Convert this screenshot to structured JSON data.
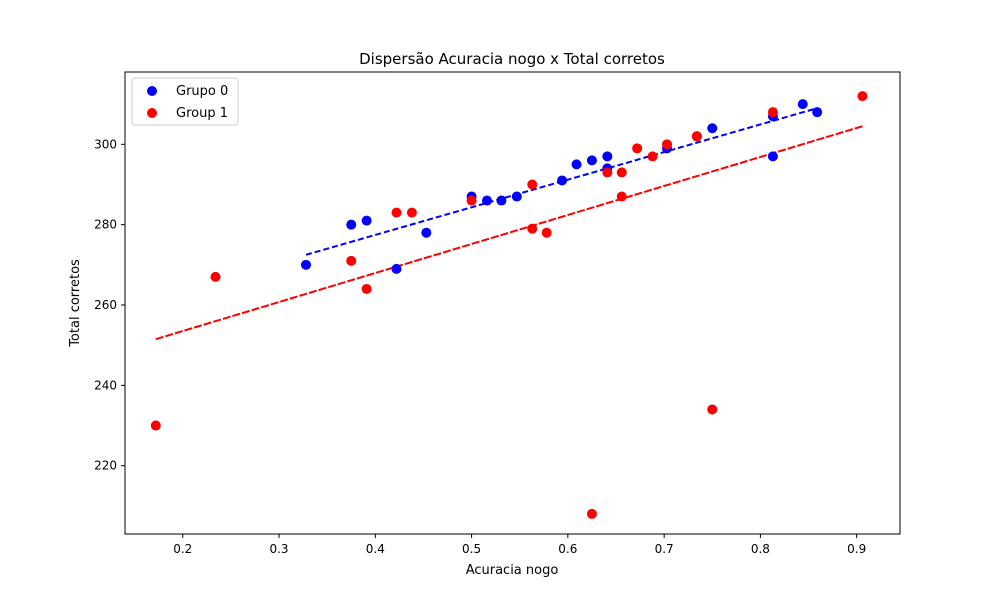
{
  "chart_data": {
    "type": "scatter",
    "title": "Dispersão Acuracia nogo x Total corretos",
    "xlabel": "Acuracia nogo",
    "ylabel": "Total corretos",
    "xlim": [
      0.14,
      0.945
    ],
    "ylim": [
      203,
      318
    ],
    "xticks": [
      0.2,
      0.3,
      0.4,
      0.5,
      0.6,
      0.7,
      0.8,
      0.9
    ],
    "xtick_labels": [
      "0.2",
      "0.3",
      "0.4",
      "0.5",
      "0.6",
      "0.7",
      "0.8",
      "0.9"
    ],
    "yticks": [
      220,
      240,
      260,
      280,
      300
    ],
    "ytick_labels": [
      "220",
      "240",
      "260",
      "280",
      "300"
    ],
    "grid": false,
    "legend_position": "top-left",
    "series": [
      {
        "name": "Grupo 0",
        "color": "#0000ff",
        "points": [
          [
            0.328,
            270
          ],
          [
            0.375,
            280
          ],
          [
            0.391,
            281
          ],
          [
            0.422,
            269
          ],
          [
            0.453,
            278
          ],
          [
            0.5,
            287
          ],
          [
            0.516,
            286
          ],
          [
            0.531,
            286
          ],
          [
            0.547,
            287
          ],
          [
            0.594,
            291
          ],
          [
            0.609,
            295
          ],
          [
            0.625,
            296
          ],
          [
            0.641,
            297
          ],
          [
            0.641,
            294
          ],
          [
            0.703,
            299
          ],
          [
            0.734,
            302
          ],
          [
            0.75,
            304
          ],
          [
            0.813,
            307
          ],
          [
            0.813,
            297
          ],
          [
            0.844,
            310
          ],
          [
            0.859,
            308
          ]
        ],
        "trend": {
          "x0": 0.328,
          "y0": 272.5,
          "x1": 0.859,
          "y1": 309
        }
      },
      {
        "name": "Group 1",
        "color": "#ff0000",
        "points": [
          [
            0.172,
            230
          ],
          [
            0.234,
            267
          ],
          [
            0.375,
            271
          ],
          [
            0.391,
            264
          ],
          [
            0.422,
            283
          ],
          [
            0.438,
            283
          ],
          [
            0.5,
            286
          ],
          [
            0.563,
            290
          ],
          [
            0.563,
            279
          ],
          [
            0.578,
            278
          ],
          [
            0.625,
            208
          ],
          [
            0.641,
            293
          ],
          [
            0.656,
            293
          ],
          [
            0.656,
            287
          ],
          [
            0.672,
            299
          ],
          [
            0.688,
            297
          ],
          [
            0.703,
            300
          ],
          [
            0.734,
            302
          ],
          [
            0.75,
            234
          ],
          [
            0.813,
            308
          ],
          [
            0.906,
            312
          ]
        ],
        "trend": {
          "x0": 0.172,
          "y0": 251.5,
          "x1": 0.906,
          "y1": 304.5
        }
      }
    ]
  }
}
